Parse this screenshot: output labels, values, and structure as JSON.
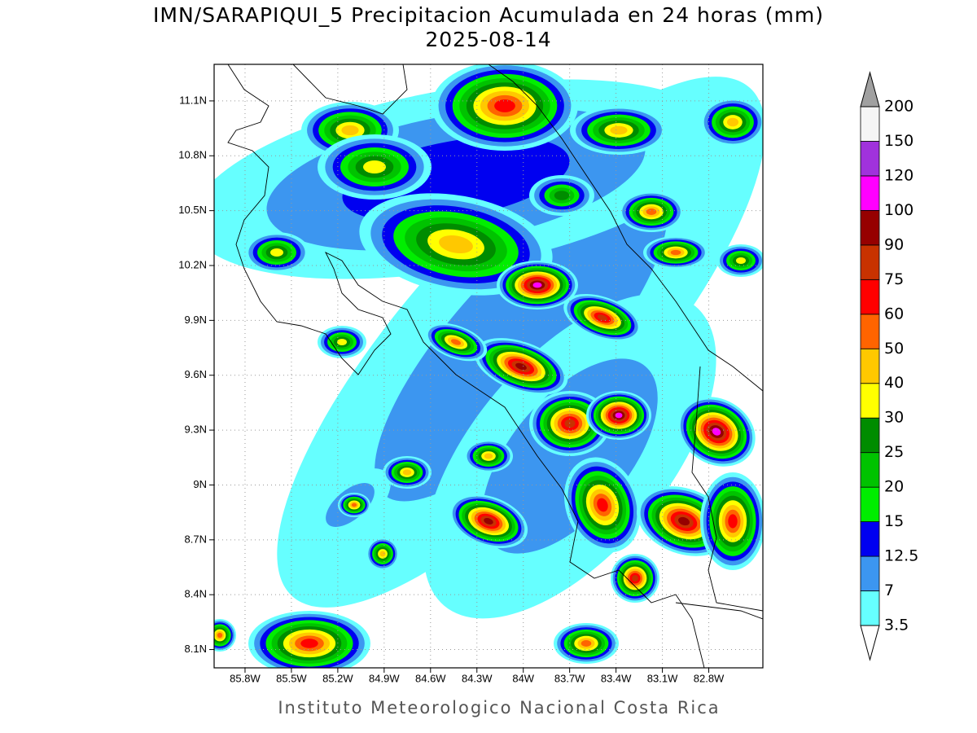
{
  "title": "IMN/SARAPIQUI_5 Precipitacion Acumulada en 24 horas (mm)",
  "date": "2025-08-14",
  "credit": "Instituto Meteorologico Nacional Costa Rica",
  "map": {
    "xlim": [
      -86.0,
      -82.45
    ],
    "ylim": [
      8.0,
      11.3
    ],
    "xticks": [
      {
        "value": -85.8,
        "label": "85.8W"
      },
      {
        "value": -85.5,
        "label": "85.5W"
      },
      {
        "value": -85.2,
        "label": "85.2W"
      },
      {
        "value": -84.9,
        "label": "84.9W"
      },
      {
        "value": -84.6,
        "label": "84.6W"
      },
      {
        "value": -84.3,
        "label": "84.3W"
      },
      {
        "value": -84.0,
        "label": "84W"
      },
      {
        "value": -83.7,
        "label": "83.7W"
      },
      {
        "value": -83.4,
        "label": "83.4W"
      },
      {
        "value": -83.1,
        "label": "83.1W"
      },
      {
        "value": -82.8,
        "label": "82.8W"
      }
    ],
    "yticks": [
      {
        "value": 8.1,
        "label": "8.1N"
      },
      {
        "value": 8.4,
        "label": "8.4N"
      },
      {
        "value": 8.7,
        "label": "8.7N"
      },
      {
        "value": 9.0,
        "label": "9N"
      },
      {
        "value": 9.3,
        "label": "9.3N"
      },
      {
        "value": 9.6,
        "label": "9.6N"
      },
      {
        "value": 9.9,
        "label": "9.9N"
      },
      {
        "value": 10.2,
        "label": "10.2N"
      },
      {
        "value": 10.5,
        "label": "10.5N"
      },
      {
        "value": 10.8,
        "label": "10.8N"
      },
      {
        "value": 11.1,
        "label": "11.1N"
      }
    ],
    "grid": true
  },
  "colorbar": {
    "levels": [
      3.5,
      7,
      12.5,
      15,
      20,
      25,
      30,
      40,
      50,
      60,
      75,
      90,
      100,
      120,
      150,
      200
    ],
    "colors": [
      "#ffffff",
      "#66ffff",
      "#3c96f0",
      "#0000f0",
      "#00ee00",
      "#00c300",
      "#008c00",
      "#ffff00",
      "#ffc800",
      "#ff6400",
      "#ff0000",
      "#c83200",
      "#960000",
      "#ff00ff",
      "#a032dc",
      "#f5f5f5",
      "#a0a0a0"
    ]
  }
}
